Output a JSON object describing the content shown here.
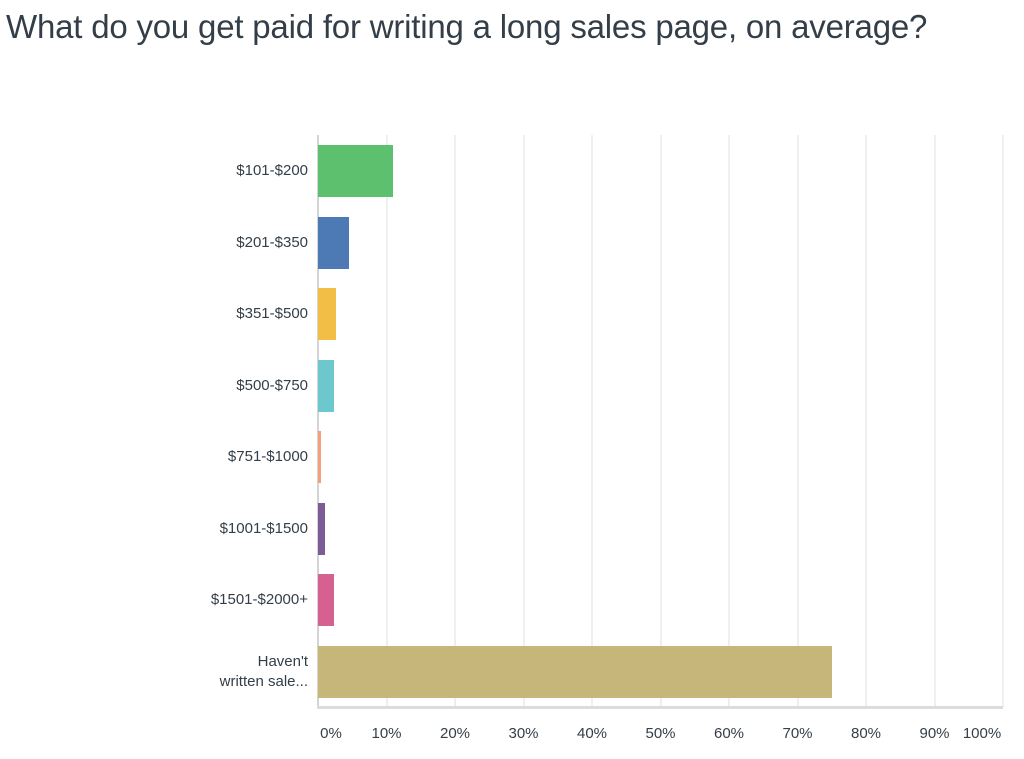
{
  "title": "What do you get paid for writing a long sales page, on average?",
  "chart_data": {
    "type": "bar",
    "orientation": "horizontal",
    "title": "What do you get paid for writing a long sales page, on average?",
    "xlabel": "",
    "ylabel": "",
    "xlim": [
      0,
      100
    ],
    "grid": true,
    "legend": null,
    "categories": [
      "$101-$200",
      "$201-$350",
      "$351-$500",
      "$500-$750",
      "$751-$1000",
      "$1001-$1500",
      "$1501-$2000+",
      "Haven't written sale..."
    ],
    "category_lines": [
      [
        "$101-$200"
      ],
      [
        "$201-$350"
      ],
      [
        "$351-$500"
      ],
      [
        "$500-$750"
      ],
      [
        "$751-$1000"
      ],
      [
        "$1001-$1500"
      ],
      [
        "$1501-$2000+"
      ],
      [
        "Haven't",
        "written sale..."
      ]
    ],
    "values": [
      11.0,
      4.5,
      2.6,
      2.4,
      0.4,
      1.0,
      2.4,
      75.1
    ],
    "colors": [
      "#5cc06f",
      "#4d79b5",
      "#f3be46",
      "#6dc8cd",
      "#f4a17a",
      "#7c5b96",
      "#d6608f",
      "#c6b67a"
    ],
    "x_ticks": [
      "0%",
      "10%",
      "20%",
      "30%",
      "40%",
      "50%",
      "60%",
      "70%",
      "80%",
      "90%",
      "100%"
    ]
  }
}
